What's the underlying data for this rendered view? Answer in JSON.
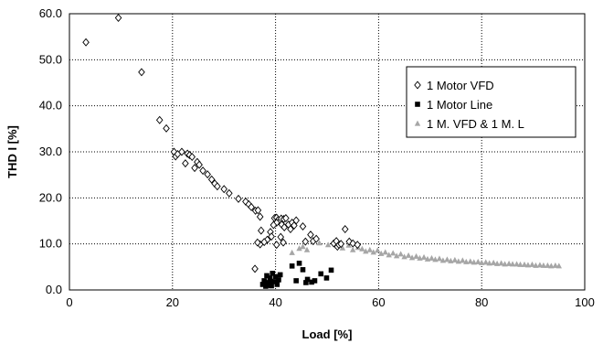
{
  "chart_data": {
    "type": "scatter",
    "xlabel": "Load [%]",
    "ylabel": "THD I [%]",
    "xlim": [
      0,
      100
    ],
    "ylim": [
      0,
      60
    ],
    "x_ticks": [
      "0",
      "20",
      "40",
      "60",
      "80",
      "100"
    ],
    "y_ticks": [
      "0.0",
      "10.0",
      "20.0",
      "30.0",
      "40.0",
      "50.0",
      "60.0"
    ],
    "grid": "dotted",
    "legend_position": "right",
    "colors": {
      "vfd": "#000000",
      "line": "#000000",
      "combo": "#a6a6a6"
    },
    "series": [
      {
        "name": "1 Motor VFD",
        "marker": "diamond-open",
        "points": [
          [
            3.2,
            53.8
          ],
          [
            9.5,
            59.1
          ],
          [
            14.0,
            47.3
          ],
          [
            17.5,
            36.9
          ],
          [
            18.8,
            35.1
          ],
          [
            20.3,
            30.0
          ],
          [
            20.6,
            29.0
          ],
          [
            21.0,
            29.5
          ],
          [
            21.8,
            30.0
          ],
          [
            22.5,
            27.5
          ],
          [
            22.9,
            29.6
          ],
          [
            23.3,
            29.3
          ],
          [
            23.8,
            28.9
          ],
          [
            24.3,
            26.5
          ],
          [
            24.8,
            27.8
          ],
          [
            25.2,
            27.2
          ],
          [
            25.9,
            25.9
          ],
          [
            26.8,
            25.1
          ],
          [
            27.6,
            24.0
          ],
          [
            28.2,
            23.1
          ],
          [
            28.7,
            22.5
          ],
          [
            30.0,
            21.9
          ],
          [
            31.0,
            21.0
          ],
          [
            32.8,
            19.8
          ],
          [
            34.2,
            19.2
          ],
          [
            34.8,
            18.6
          ],
          [
            35.3,
            18.0
          ],
          [
            36.1,
            17.2
          ],
          [
            36.6,
            17.3
          ],
          [
            37.0,
            15.9
          ],
          [
            36.0,
            4.6
          ],
          [
            37.2,
            12.9
          ],
          [
            38.4,
            10.9
          ],
          [
            37.0,
            9.9
          ],
          [
            39.0,
            12.6
          ],
          [
            39.8,
            15.6
          ],
          [
            40.2,
            15.7
          ],
          [
            40.5,
            15.2
          ],
          [
            40.8,
            14.8
          ],
          [
            40.2,
            14.6
          ],
          [
            39.6,
            14.1
          ],
          [
            41.1,
            15.5
          ],
          [
            41.6,
            15.4
          ],
          [
            42.0,
            15.6
          ],
          [
            41.2,
            14.2
          ],
          [
            41.7,
            13.6
          ],
          [
            42.5,
            14.2
          ],
          [
            43.2,
            14.6
          ],
          [
            43.6,
            14.0
          ],
          [
            42.9,
            13.2
          ],
          [
            44.0,
            15.1
          ],
          [
            45.3,
            13.8
          ],
          [
            46.8,
            12.0
          ],
          [
            47.3,
            10.6
          ],
          [
            47.9,
            11.1
          ],
          [
            45.8,
            10.5
          ],
          [
            41.0,
            11.5
          ],
          [
            41.5,
            10.3
          ],
          [
            40.2,
            9.8
          ],
          [
            39.2,
            11.6
          ],
          [
            37.8,
            10.4
          ],
          [
            36.5,
            10.3
          ],
          [
            51.3,
            10.1
          ],
          [
            51.8,
            10.6
          ],
          [
            52.0,
            9.4
          ],
          [
            52.3,
            9.8
          ],
          [
            52.7,
            10.0
          ],
          [
            53.5,
            13.2
          ],
          [
            54.3,
            10.5
          ],
          [
            55.0,
            10.1
          ],
          [
            55.9,
            9.8
          ]
        ]
      },
      {
        "name": "1 Motor Line",
        "marker": "square-filled",
        "points": [
          [
            37.5,
            1.2
          ],
          [
            37.8,
            2.0
          ],
          [
            38.1,
            0.8
          ],
          [
            38.3,
            3.1
          ],
          [
            38.6,
            1.5
          ],
          [
            38.9,
            2.6
          ],
          [
            39.2,
            0.9
          ],
          [
            39.4,
            3.6
          ],
          [
            39.7,
            1.8
          ],
          [
            40.0,
            2.9
          ],
          [
            40.3,
            1.2
          ],
          [
            40.6,
            2.2
          ],
          [
            40.9,
            3.3
          ],
          [
            38.0,
            1.6
          ],
          [
            38.5,
            1.0
          ],
          [
            39.0,
            1.9
          ],
          [
            43.2,
            5.2
          ],
          [
            44.0,
            2.0
          ],
          [
            44.6,
            5.8
          ],
          [
            45.3,
            4.4
          ],
          [
            45.9,
            1.6
          ],
          [
            46.2,
            2.3
          ],
          [
            47.0,
            1.7
          ],
          [
            47.6,
            2.0
          ],
          [
            48.8,
            3.5
          ],
          [
            49.9,
            2.6
          ],
          [
            50.8,
            4.3
          ]
        ]
      },
      {
        "name": "1 M. VFD & 1 M. L",
        "marker": "triangle-filled",
        "points": [
          [
            43.2,
            8.1
          ],
          [
            44.6,
            9.0
          ],
          [
            45.3,
            9.4
          ],
          [
            46.1,
            8.7
          ],
          [
            48.5,
            10.2
          ],
          [
            50.2,
            9.8
          ],
          [
            52.0,
            9.5
          ],
          [
            53.0,
            9.1
          ],
          [
            54.2,
            9.7
          ],
          [
            55.0,
            8.7
          ],
          [
            56.0,
            9.2
          ],
          [
            56.8,
            8.9
          ],
          [
            57.5,
            8.4
          ],
          [
            58.3,
            8.7
          ],
          [
            59.0,
            8.2
          ],
          [
            59.8,
            8.6
          ],
          [
            60.5,
            7.9
          ],
          [
            61.3,
            8.2
          ],
          [
            62.0,
            7.6
          ],
          [
            62.8,
            8.0
          ],
          [
            63.5,
            7.4
          ],
          [
            64.3,
            7.8
          ],
          [
            65.0,
            7.2
          ],
          [
            65.8,
            7.5
          ],
          [
            66.5,
            7.0
          ],
          [
            67.3,
            7.3
          ],
          [
            68.0,
            6.9
          ],
          [
            68.8,
            7.1
          ],
          [
            69.5,
            6.7
          ],
          [
            70.3,
            6.9
          ],
          [
            71.0,
            6.6
          ],
          [
            71.8,
            6.8
          ],
          [
            72.5,
            6.4
          ],
          [
            73.3,
            6.6
          ],
          [
            74.0,
            6.3
          ],
          [
            74.8,
            6.5
          ],
          [
            75.5,
            6.2
          ],
          [
            76.3,
            6.4
          ],
          [
            77.0,
            6.1
          ],
          [
            77.8,
            6.2
          ],
          [
            78.5,
            6.0
          ],
          [
            79.3,
            6.1
          ],
          [
            80.0,
            5.9
          ],
          [
            80.8,
            6.0
          ],
          [
            81.5,
            5.8
          ],
          [
            82.3,
            5.9
          ],
          [
            83.0,
            5.7
          ],
          [
            83.8,
            5.8
          ],
          [
            84.5,
            5.6
          ],
          [
            85.3,
            5.7
          ],
          [
            86.0,
            5.6
          ],
          [
            86.8,
            5.6
          ],
          [
            87.5,
            5.5
          ],
          [
            88.3,
            5.5
          ],
          [
            89.0,
            5.4
          ],
          [
            89.8,
            5.5
          ],
          [
            90.5,
            5.3
          ],
          [
            91.3,
            5.4
          ],
          [
            92.0,
            5.3
          ],
          [
            92.8,
            5.3
          ],
          [
            93.5,
            5.2
          ],
          [
            94.3,
            5.3
          ],
          [
            95.0,
            5.2
          ]
        ]
      }
    ]
  }
}
